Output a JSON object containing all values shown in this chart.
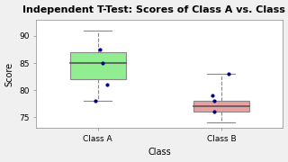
{
  "title": "Independent T-Test: Scores of Class A vs. Class B",
  "xlabel": "Class",
  "ylabel": "Score",
  "ylim": [
    73,
    93
  ],
  "yticks": [
    75,
    80,
    85,
    90
  ],
  "categories": [
    "Class A",
    "Class B"
  ],
  "class_a": {
    "median": 85,
    "q1": 82,
    "q3": 87,
    "whisker_low": 78,
    "whisker_high": 91,
    "points": [
      78,
      81,
      85,
      87.5
    ]
  },
  "class_b": {
    "median": 77,
    "q1": 76,
    "q3": 78,
    "whisker_low": 74,
    "whisker_high": 83,
    "points": [
      76,
      78,
      79,
      83
    ]
  },
  "box_color_a": "#90EE90",
  "box_color_b": "#E8A0A0",
  "box_edge_color": "#888888",
  "median_color": "#555555",
  "whisker_color": "#888888",
  "point_color": "#00008B",
  "background_color": "#f0f0f0",
  "plot_bg_color": "#ffffff",
  "title_fontsize": 8,
  "label_fontsize": 7,
  "tick_fontsize": 6.5
}
